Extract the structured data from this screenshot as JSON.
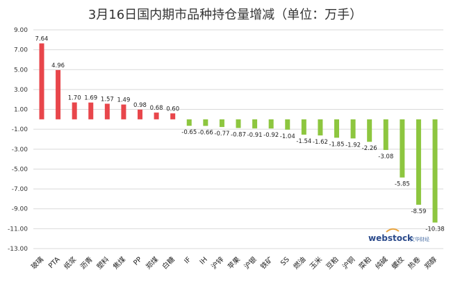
{
  "chart_data": {
    "type": "bar",
    "title": "3月16日国内期市品种持仓量增减（单位：万手）",
    "categories": [
      "玻璃",
      "PTA",
      "纸浆",
      "沥青",
      "塑料",
      "焦煤",
      "PP",
      "郑煤",
      "白糖",
      "IF",
      "IH",
      "沪锌",
      "苹果",
      "沪银",
      "铁矿",
      "SS",
      "燃油",
      "玉米",
      "豆粕",
      "沪铜",
      "菜粕",
      "纯碱",
      "螺纹",
      "热卷",
      "郑醇"
    ],
    "values": [
      7.64,
      4.96,
      1.7,
      1.69,
      1.57,
      1.49,
      0.98,
      0.68,
      0.6,
      -0.65,
      -0.66,
      -0.77,
      -0.87,
      -0.91,
      -0.92,
      -1.04,
      -1.54,
      -1.62,
      -1.85,
      -1.92,
      -2.26,
      -3.08,
      -5.85,
      -8.59,
      -10.38
    ],
    "value_labels": [
      "7.64",
      "4.96",
      "1.70",
      "1.69",
      "1.57",
      "1.49",
      "0.98",
      "0.68",
      "0.60",
      "-0.65",
      "-0.66",
      "-0.77",
      "-0.87",
      "-0.91",
      "-0.92",
      "-1.04",
      "-1.54",
      "-1.62",
      "-1.85",
      "-1.92",
      "-2.26",
      "-3.08",
      "-5.85",
      "-8.59",
      "-10.38"
    ],
    "ylim": [
      -13,
      9
    ],
    "yticks": [
      9,
      7,
      5,
      3,
      1,
      -1,
      -3,
      -5,
      -7,
      -9,
      -11,
      -13
    ],
    "ytick_labels": [
      "9.00",
      "7.00",
      "5.00",
      "3.00",
      "1.00",
      "-1.00",
      "-3.00",
      "-5.00",
      "-7.00",
      "-9.00",
      "-11.00",
      "-13.00"
    ],
    "grid": true,
    "colors": {
      "positive": "#e8464b",
      "negative": "#8dc63f",
      "grid": "#d9d9d9"
    }
  },
  "watermark": {
    "brand": "webstock",
    "subtitle": "文华财经"
  }
}
